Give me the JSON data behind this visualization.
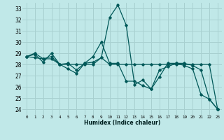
{
  "xlabel": "Humidex (Indice chaleur)",
  "bg_color": "#c0e8e8",
  "grid_color": "#a8d0d0",
  "line_color": "#005858",
  "xlim": [
    -0.5,
    23.5
  ],
  "ylim": [
    23.5,
    33.5
  ],
  "xticks": [
    0,
    1,
    2,
    3,
    4,
    5,
    6,
    7,
    8,
    9,
    10,
    11,
    12,
    13,
    14,
    15,
    16,
    17,
    18,
    19,
    20,
    21,
    22,
    23
  ],
  "yticks": [
    24,
    25,
    26,
    27,
    28,
    29,
    30,
    31,
    32,
    33
  ],
  "series1": [
    28.7,
    29.0,
    28.5,
    28.7,
    28.0,
    28.1,
    27.5,
    28.1,
    28.2,
    28.6,
    32.2,
    33.3,
    31.5,
    26.2,
    26.6,
    25.8,
    27.5,
    27.8,
    28.1,
    28.1,
    27.9,
    27.5,
    24.9,
    24.0
  ],
  "series2": [
    28.7,
    28.9,
    28.2,
    29.0,
    28.0,
    27.6,
    27.2,
    28.1,
    28.7,
    30.0,
    28.1,
    28.1,
    26.5,
    26.5,
    26.1,
    25.8,
    26.9,
    28.1,
    28.1,
    27.9,
    27.6,
    25.3,
    24.9,
    24.0
  ],
  "series3": [
    28.7,
    28.6,
    28.5,
    28.5,
    28.0,
    28.0,
    28.0,
    28.0,
    28.0,
    28.6,
    28.0,
    28.0,
    28.0,
    28.0,
    28.0,
    28.0,
    28.0,
    28.0,
    28.0,
    28.0,
    28.0,
    28.0,
    28.0,
    24.0
  ]
}
